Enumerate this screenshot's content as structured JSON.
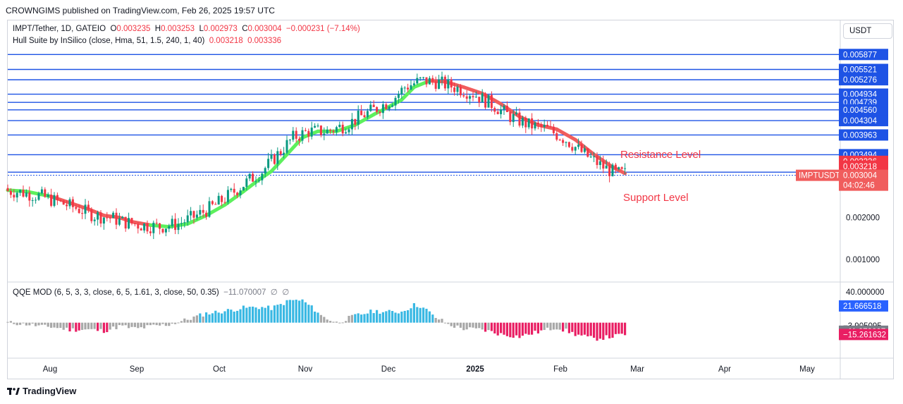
{
  "header": {
    "published": "CROWNGIMS published on TradingView.com, Feb 26, 2025 19:57 UTC"
  },
  "legend": {
    "symbol": "IMPT/Tether, 1D, GATEIO",
    "o_label": "O",
    "o": "0.003235",
    "h_label": "H",
    "h": "0.003253",
    "l_label": "L",
    "l": "0.002973",
    "c_label": "C",
    "c": "0.003004",
    "change": "−0.000231 (−7.14%)",
    "hull_label": "Hull Suite by InSilico (close, Hma, 51, 1.5, 240, 1, 40)",
    "hull_v1": "0.003218",
    "hull_v2": "0.003336",
    "qqe_label": "QQE MOD (6, 5, 3, 3, close, 6, 5, 1.61, 3, close, 50, 0.35)",
    "qqe_v1": "−11.070007",
    "qqe_v2": "∅",
    "qqe_v3": "∅"
  },
  "currency": "USDT",
  "annotations": {
    "resistance": "Resistance Level",
    "support": "Support Level"
  },
  "footer": {
    "brand": "TradingView"
  },
  "colors": {
    "level_line": "#1e53e5",
    "bull": "#089981",
    "bear": "#f23645",
    "hull_up": "#5df05d",
    "hull_down": "#f05d5d",
    "qqe_blue": "#39b8e3",
    "qqe_gray": "#a8a8a8",
    "qqe_pink": "#e91e63"
  },
  "chart_data": {
    "type": "candlestick",
    "symbol": "IMPTUSDT",
    "last_price": "0.003004",
    "countdown": "04:02:46",
    "price_ticks": [
      {
        "label": "0.002000",
        "value": 0.002
      },
      {
        "label": "0.001000",
        "value": 0.001
      }
    ],
    "price_range": [
      0.0005,
      0.0062
    ],
    "levels": [
      {
        "label": "0.005877",
        "value": 0.005877
      },
      {
        "label": "0.005521",
        "value": 0.005521
      },
      {
        "label": "0.005276",
        "value": 0.005276
      },
      {
        "label": "0.004934",
        "value": 0.004934
      },
      {
        "label": "0.004739",
        "value": 0.004739
      },
      {
        "label": "0.004560",
        "value": 0.00456
      },
      {
        "label": "0.004304",
        "value": 0.004304
      },
      {
        "label": "0.003963",
        "value": 0.003963
      },
      {
        "label": "0.003494",
        "value": 0.003494
      },
      {
        "label": "0.003078",
        "value": 0.003078
      },
      {
        "label": "0.003004",
        "value": 0.003004
      }
    ],
    "hull_tags": [
      {
        "label": "0.003336",
        "value": 0.003336
      },
      {
        "label": "0.003218",
        "value": 0.003218
      }
    ],
    "x_ticks": [
      "Aug",
      "Sep",
      "Oct",
      "Nov",
      "Dec",
      "2025",
      "Feb",
      "Mar",
      "Apr",
      "May"
    ],
    "qqe_ticks": [
      {
        "label": "40.000000",
        "value": 40
      },
      {
        "label": "21.666518",
        "value": 21.666518
      },
      {
        "label": "−3.905095",
        "value": -3.905095
      },
      {
        "label": "−11.070007",
        "value": -11.070007
      },
      {
        "label": "−15.261632",
        "value": -15.261632
      }
    ],
    "qqe_range": [
      -45,
      48
    ],
    "hull_path": [
      [
        0,
        0.00265
      ],
      [
        6,
        0.00262
      ],
      [
        14,
        0.0025
      ],
      [
        20,
        0.00235
      ],
      [
        26,
        0.0022
      ],
      [
        31,
        0.00205
      ],
      [
        36,
        0.002
      ],
      [
        40,
        0.0019
      ],
      [
        46,
        0.00182
      ],
      [
        52,
        0.00178
      ],
      [
        58,
        0.00185
      ],
      [
        64,
        0.00205
      ],
      [
        70,
        0.0023
      ],
      [
        76,
        0.00262
      ],
      [
        81,
        0.0029
      ],
      [
        85,
        0.0031
      ],
      [
        90,
        0.0035
      ],
      [
        95,
        0.0039
      ],
      [
        100,
        0.00405
      ],
      [
        106,
        0.00405
      ],
      [
        112,
        0.0042
      ],
      [
        118,
        0.00445
      ],
      [
        122,
        0.0046
      ],
      [
        127,
        0.0048
      ],
      [
        131,
        0.0051
      ],
      [
        136,
        0.00525
      ],
      [
        141,
        0.00523
      ],
      [
        147,
        0.0051
      ],
      [
        153,
        0.00495
      ],
      [
        159,
        0.0047
      ],
      [
        165,
        0.0044
      ],
      [
        171,
        0.0042
      ],
      [
        177,
        0.0041
      ],
      [
        183,
        0.00385
      ],
      [
        189,
        0.0035
      ],
      [
        195,
        0.0032
      ],
      [
        199,
        0.00305
      ]
    ],
    "hull_up_ranges": [
      [
        0,
        6
      ],
      [
        46,
        131
      ]
    ],
    "candles_note": "approximate reconstruction of the OHLC series shown in the chart"
  }
}
